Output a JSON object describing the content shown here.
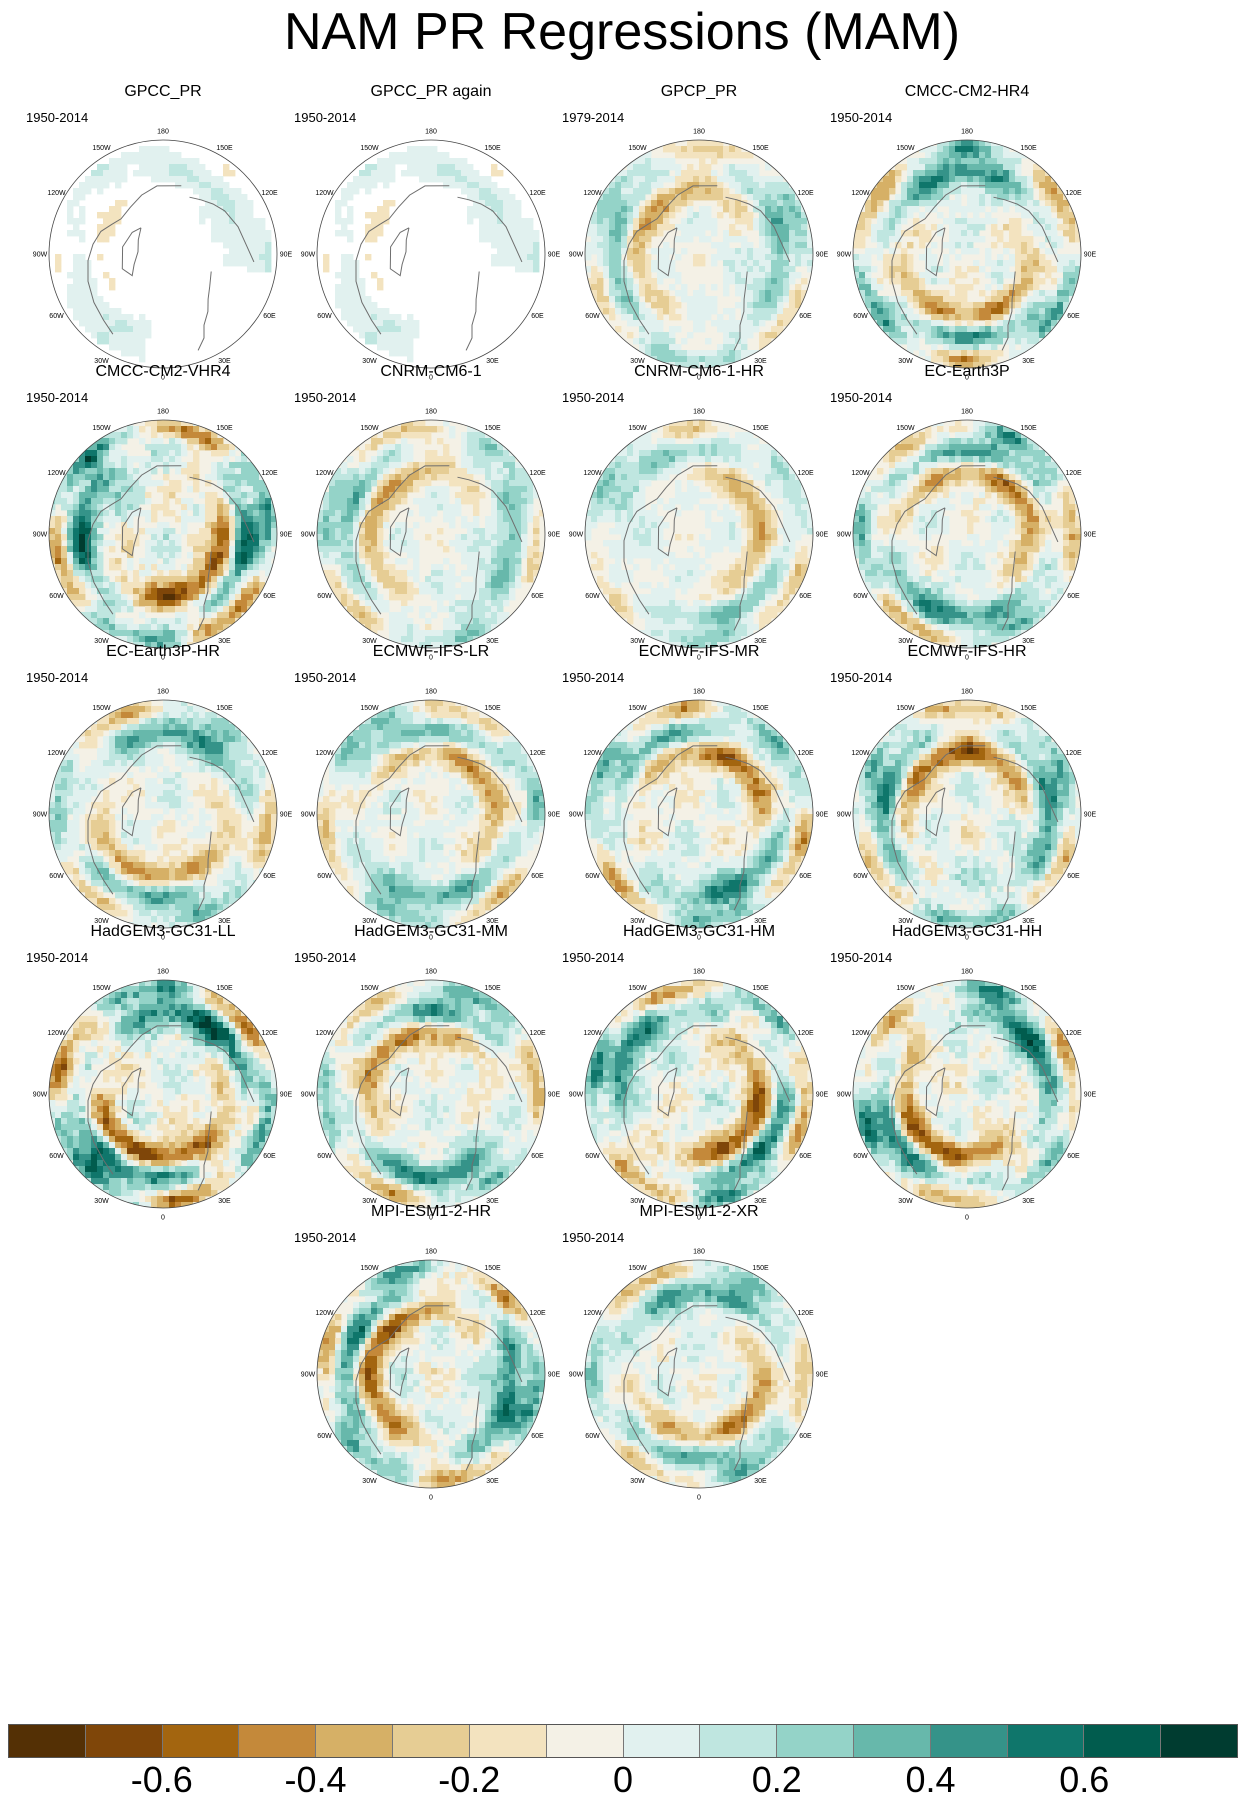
{
  "title": "NAM PR Regressions (MAM)",
  "panels": [
    {
      "name": "GPCC_PR",
      "years": "1950-2014",
      "style": "obs-mask",
      "seed": 1,
      "amp": 0.25
    },
    {
      "name": "GPCC_PR again",
      "years": "1950-2014",
      "style": "obs-mask",
      "seed": 1,
      "amp": 0.25
    },
    {
      "name": "GPCP_PR",
      "years": "1979-2014",
      "style": "full",
      "seed": 3,
      "amp": 0.45
    },
    {
      "name": "CMCC-CM2-HR4",
      "years": "1950-2014",
      "style": "full",
      "seed": 4,
      "amp": 0.6
    },
    {
      "name": "CMCC-CM2-VHR4",
      "years": "1950-2014",
      "style": "full",
      "seed": 5,
      "amp": 0.75
    },
    {
      "name": "CNRM-CM6-1",
      "years": "1950-2014",
      "style": "full",
      "seed": 6,
      "amp": 0.45
    },
    {
      "name": "CNRM-CM6-1-HR",
      "years": "1950-2014",
      "style": "full",
      "seed": 7,
      "amp": 0.4
    },
    {
      "name": "EC-Earth3P",
      "years": "1950-2014",
      "style": "full",
      "seed": 8,
      "amp": 0.6
    },
    {
      "name": "EC-Earth3P-HR",
      "years": "1950-2014",
      "style": "full",
      "seed": 9,
      "amp": 0.55
    },
    {
      "name": "ECMWF-IFS-LR",
      "years": "1950-2014",
      "style": "full",
      "seed": 10,
      "amp": 0.5
    },
    {
      "name": "ECMWF-IFS-MR",
      "years": "1950-2014",
      "style": "full",
      "seed": 11,
      "amp": 0.6
    },
    {
      "name": "ECMWF-IFS-HR",
      "years": "1950-2014",
      "style": "full",
      "seed": 12,
      "amp": 0.65
    },
    {
      "name": "HadGEM3-GC31-LL",
      "years": "1950-2014",
      "style": "full",
      "seed": 13,
      "amp": 0.8
    },
    {
      "name": "HadGEM3-GC31-MM",
      "years": "1950-2014",
      "style": "full",
      "seed": 14,
      "amp": 0.6
    },
    {
      "name": "HadGEM3-GC31-HM",
      "years": "1950-2014",
      "style": "full",
      "seed": 15,
      "amp": 0.7
    },
    {
      "name": "HadGEM3-GC31-HH",
      "years": "1950-2014",
      "style": "full",
      "seed": 16,
      "amp": 0.7
    },
    {
      "name": "MPI-ESM1-2-HR",
      "years": "1950-2014",
      "style": "full",
      "seed": 17,
      "amp": 0.7
    },
    {
      "name": "MPI-ESM1-2-XR",
      "years": "1950-2014",
      "style": "full",
      "seed": 18,
      "amp": 0.55
    }
  ],
  "lon_labels": [
    "180",
    "150E",
    "120E",
    "90E",
    "60E",
    "30E",
    "0",
    "30W",
    "60W",
    "90W",
    "120W",
    "150W"
  ],
  "colorbar": {
    "colors": [
      "#543005",
      "#7f4609",
      "#a3650f",
      "#c4893a",
      "#d6b066",
      "#e6cd94",
      "#f3e3bf",
      "#f4f1e6",
      "#e1f1ef",
      "#bfe6e0",
      "#94d3c8",
      "#67b8ab",
      "#359389",
      "#0f766b",
      "#015c4e",
      "#003c30"
    ],
    "labels": [
      "-0.6",
      "-0.4",
      "-0.2",
      "0",
      "0.2",
      "0.4",
      "0.6"
    ],
    "label_boundaries": [
      2,
      4,
      6,
      8,
      10,
      12,
      14
    ]
  },
  "map_colors": {
    "coast": "#6e6e6e",
    "outline": "#444444",
    "background": "#ffffff"
  }
}
